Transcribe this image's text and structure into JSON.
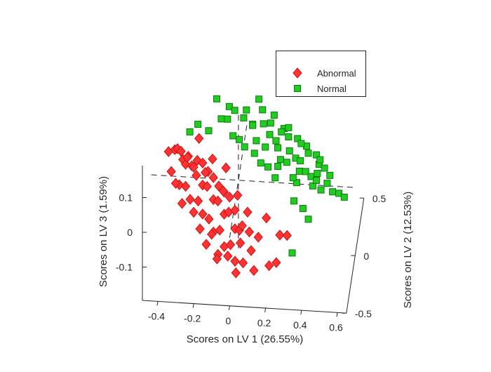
{
  "chart_data": {
    "type": "scatter",
    "dimensions": 3,
    "xlabel": "Scores on LV 1 (26.55%)",
    "ylabel": "Scores on LV 2 (12.53%)",
    "zlabel": "Scores on LV 3 (1.59%)",
    "xlim": [
      -0.486,
      0.65
    ],
    "ylim": [
      -0.5,
      0.5
    ],
    "zlim": [
      -0.196,
      0.192
    ],
    "xticks": [
      "-0.4",
      "-0.2",
      "0",
      "0.2",
      "0.4",
      "0.6"
    ],
    "xtick_values": [
      -0.4,
      -0.2,
      0,
      0.2,
      0.4,
      0.6
    ],
    "yticks": [
      "-0.5",
      "0",
      "0.5"
    ],
    "ytick_values": [
      -0.5,
      0,
      0.5
    ],
    "zticks": [
      "-0.1",
      "0",
      "0.1"
    ],
    "ztick_values": [
      -0.1,
      0,
      0.1
    ],
    "grid": false,
    "legend_position": "top-right",
    "series": [
      {
        "name": "Normal",
        "marker": "square",
        "color": "#22cc22",
        "edge": "#0a7a0a",
        "points": [
          [
            -0.3,
            0.3,
            0.03
          ],
          [
            -0.25,
            0.25,
            0.07
          ],
          [
            -0.2,
            0.35,
            0.02
          ],
          [
            -0.15,
            0.3,
            0.13
          ],
          [
            -0.12,
            0.25,
            0.09
          ],
          [
            -0.1,
            0.4,
            0.04
          ],
          [
            -0.08,
            0.3,
            0.11
          ],
          [
            -0.05,
            0.2,
            0.06
          ],
          [
            -0.03,
            0.35,
            0.0
          ],
          [
            0.0,
            0.3,
            0.08
          ],
          [
            0.02,
            0.25,
            0.12
          ],
          [
            0.04,
            0.4,
            0.03
          ],
          [
            0.06,
            0.3,
            -0.02
          ],
          [
            0.08,
            0.2,
            0.05
          ],
          [
            0.1,
            0.35,
            0.09
          ],
          [
            0.12,
            0.3,
            0.0
          ],
          [
            0.14,
            0.25,
            -0.04
          ],
          [
            0.16,
            0.4,
            0.06
          ],
          [
            0.18,
            0.3,
            0.02
          ],
          [
            0.2,
            0.2,
            -0.02
          ],
          [
            0.22,
            0.35,
            0.04
          ],
          [
            0.24,
            0.3,
            -0.04
          ],
          [
            0.26,
            0.25,
            0.01
          ],
          [
            0.28,
            0.4,
            -0.06
          ],
          [
            0.3,
            0.3,
            0.03
          ],
          [
            0.32,
            0.2,
            -0.03
          ],
          [
            0.34,
            0.35,
            -0.08
          ],
          [
            0.36,
            0.3,
            -0.01
          ],
          [
            0.38,
            0.25,
            -0.06
          ],
          [
            0.4,
            0.4,
            -0.1
          ],
          [
            0.42,
            0.3,
            -0.04
          ],
          [
            0.44,
            0.2,
            -0.08
          ],
          [
            0.46,
            0.35,
            -0.11
          ],
          [
            0.48,
            0.3,
            -0.07
          ],
          [
            0.5,
            0.25,
            -0.1
          ],
          [
            0.53,
            0.3,
            -0.12
          ],
          [
            0.56,
            0.3,
            -0.13
          ],
          [
            0.05,
            0.3,
            0.06
          ],
          [
            0.1,
            0.25,
            -0.03
          ],
          [
            0.15,
            0.3,
            0.07
          ],
          [
            0.2,
            0.35,
            -0.05
          ],
          [
            0.25,
            0.3,
            0.06
          ],
          [
            0.3,
            0.25,
            -0.08
          ],
          [
            0.35,
            0.3,
            0.01
          ],
          [
            0.4,
            0.35,
            -0.03
          ],
          [
            0.45,
            0.3,
            -0.05
          ],
          [
            0.12,
            0.2,
            0.1
          ],
          [
            0.18,
            0.25,
            -0.07
          ],
          [
            0.22,
            0.2,
            0.08
          ],
          [
            0.27,
            0.35,
            -0.1
          ],
          [
            0.33,
            0.2,
            0.05
          ],
          [
            0.38,
            0.35,
            -0.12
          ],
          [
            0.28,
            0.3,
            -0.15
          ],
          [
            0.33,
            0.3,
            -0.17
          ],
          [
            0.36,
            0.3,
            -0.2
          ],
          [
            0.0,
            0.35,
            -0.02
          ],
          [
            -0.05,
            0.3,
            0.1
          ],
          [
            0.08,
            0.35,
            0.12
          ],
          [
            0.24,
            0.4,
            0.0
          ],
          [
            0.43,
            0.25,
            -0.01
          ],
          [
            0.27,
            0.3,
            -0.3
          ],
          [
            0.19,
            0.3,
            0.0
          ],
          [
            0.31,
            0.35,
            -0.05
          ],
          [
            0.14,
            0.35,
            0.02
          ],
          [
            0.41,
            0.25,
            -0.07
          ]
        ]
      },
      {
        "name": "Abnormal",
        "marker": "diamond",
        "color": "#ff3333",
        "edge": "#c81414",
        "points": [
          [
            -0.36,
            -0.3,
            0.17
          ],
          [
            -0.33,
            -0.25,
            0.16
          ],
          [
            -0.34,
            -0.35,
            0.13
          ],
          [
            -0.31,
            -0.3,
            0.18
          ],
          [
            -0.3,
            -0.2,
            0.14
          ],
          [
            -0.28,
            -0.3,
            0.15
          ],
          [
            -0.29,
            -0.4,
            0.11
          ],
          [
            -0.27,
            -0.25,
            0.12
          ],
          [
            -0.25,
            -0.3,
            0.16
          ],
          [
            -0.26,
            -0.35,
            0.09
          ],
          [
            -0.24,
            -0.2,
            0.1
          ],
          [
            -0.22,
            -0.3,
            0.13
          ],
          [
            -0.23,
            -0.4,
            0.07
          ],
          [
            -0.21,
            -0.25,
            0.09
          ],
          [
            -0.2,
            -0.3,
            0.15
          ],
          [
            -0.19,
            -0.35,
            0.05
          ],
          [
            -0.18,
            -0.2,
            0.11
          ],
          [
            -0.17,
            -0.3,
            0.08
          ],
          [
            -0.16,
            -0.4,
            0.03
          ],
          [
            -0.15,
            -0.25,
            0.06
          ],
          [
            -0.14,
            -0.3,
            0.12
          ],
          [
            -0.13,
            -0.35,
            0.0
          ],
          [
            -0.12,
            -0.2,
            0.07
          ],
          [
            -0.11,
            -0.3,
            0.04
          ],
          [
            -0.1,
            -0.4,
            -0.02
          ],
          [
            -0.09,
            -0.25,
            0.02
          ],
          [
            -0.08,
            -0.3,
            0.08
          ],
          [
            -0.07,
            -0.35,
            -0.03
          ],
          [
            -0.06,
            -0.2,
            0.03
          ],
          [
            -0.05,
            -0.3,
            0.0
          ],
          [
            -0.04,
            -0.4,
            -0.06
          ],
          [
            -0.03,
            -0.25,
            -0.01
          ],
          [
            -0.02,
            -0.3,
            0.05
          ],
          [
            -0.01,
            -0.35,
            -0.07
          ],
          [
            0.0,
            -0.2,
            -0.02
          ],
          [
            0.01,
            -0.3,
            -0.04
          ],
          [
            0.02,
            -0.4,
            -0.1
          ],
          [
            0.03,
            -0.25,
            -0.06
          ],
          [
            0.05,
            -0.3,
            -0.03
          ],
          [
            0.06,
            -0.35,
            -0.12
          ],
          [
            0.08,
            -0.2,
            -0.08
          ],
          [
            0.1,
            -0.3,
            -0.1
          ],
          [
            -0.32,
            -0.3,
            0.08
          ],
          [
            -0.28,
            -0.35,
            0.04
          ],
          [
            -0.22,
            -0.3,
            0.0
          ],
          [
            -0.18,
            -0.35,
            -0.03
          ],
          [
            -0.12,
            -0.3,
            -0.06
          ],
          [
            -0.08,
            -0.35,
            -0.1
          ],
          [
            -0.03,
            -0.3,
            -0.12
          ],
          [
            0.02,
            -0.35,
            -0.15
          ],
          [
            -0.2,
            -0.2,
            0.18
          ],
          [
            -0.12,
            -0.25,
            0.14
          ],
          [
            -0.05,
            -0.2,
            0.1
          ],
          [
            0.02,
            -0.25,
            0.04
          ],
          [
            0.08,
            -0.3,
            0.01
          ],
          [
            0.14,
            -0.3,
            -0.06
          ],
          [
            0.18,
            -0.25,
            -0.02
          ],
          [
            0.26,
            -0.3,
            -0.05
          ],
          [
            0.3,
            -0.3,
            -0.05
          ],
          [
            0.24,
            -0.3,
            -0.13
          ],
          [
            0.2,
            -0.3,
            -0.14
          ],
          [
            -0.15,
            -0.3,
            -0.09
          ],
          [
            -0.09,
            -0.3,
            -0.13
          ],
          [
            0.12,
            -0.35,
            -0.14
          ],
          [
            -0.26,
            -0.25,
            0.14
          ],
          [
            -0.16,
            -0.25,
            0.1
          ],
          [
            -0.06,
            -0.25,
            0.05
          ],
          [
            0.04,
            -0.3,
            -0.08
          ]
        ]
      }
    ],
    "legend": [
      "Abnormal",
      "Normal"
    ]
  }
}
